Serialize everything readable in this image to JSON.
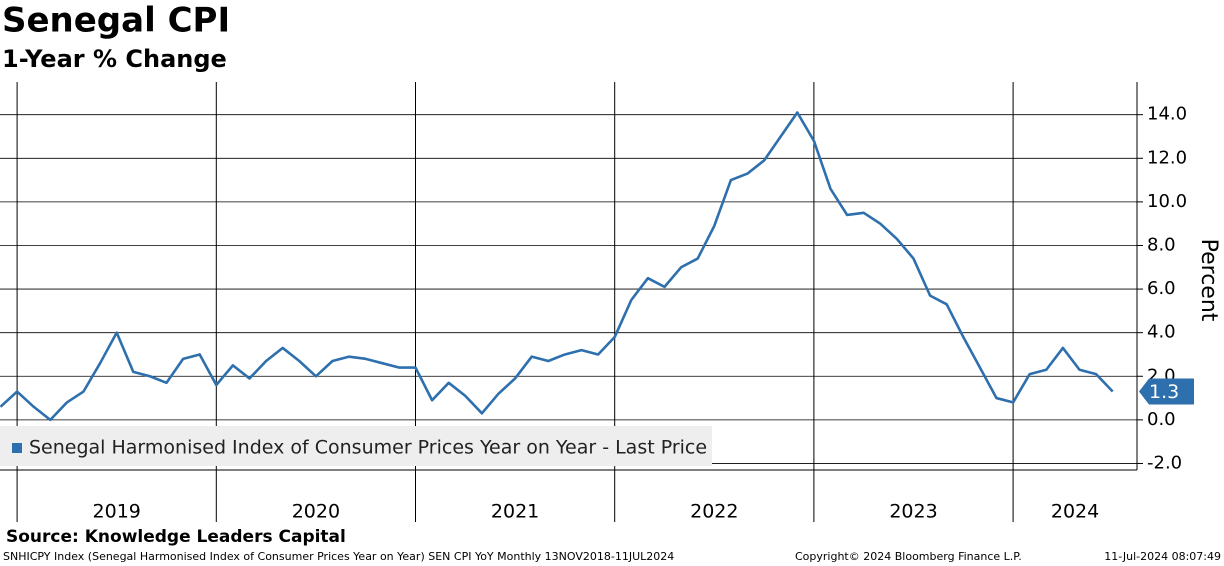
{
  "chart_data": {
    "type": "line",
    "title": "Senegal CPI",
    "subtitle": "1-Year % Change",
    "y_axis_label": "Percent",
    "source": "Source: Knowledge Leaders Capital",
    "footnote": "SNHICPY Index (Senegal Harmonised Index of Consumer Prices Year on Year) SEN CPI YoY  Monthly 13NOV2018-11JUL2024",
    "copyright": "Copyright© 2024 Bloomberg Finance L.P.",
    "timestamp": "11-Jul-2024 08:07:49",
    "year_labels": [
      "2019",
      "2020",
      "2021",
      "2022",
      "2023",
      "2024"
    ],
    "categories": [
      null,
      null,
      null,
      null,
      null,
      null,
      null,
      null,
      null,
      null,
      null,
      null,
      null,
      null,
      null,
      null,
      null,
      null,
      null,
      null,
      null,
      null,
      null,
      null,
      null,
      null,
      null,
      null,
      null,
      null,
      null,
      null,
      null,
      null,
      null,
      null,
      null,
      null,
      null,
      null,
      null,
      null,
      null,
      null,
      null,
      null,
      null,
      null,
      null,
      null,
      null,
      null,
      null,
      null,
      null,
      null,
      null,
      null,
      null,
      null,
      null,
      null,
      null,
      null,
      null,
      null,
      null,
      null
    ],
    "series": [
      {
        "name": "Senegal Harmonised Index of Consumer Prices Year on Year - Last Price",
        "color": "#2e6fad",
        "values": [
          0.6,
          1.3,
          0.6,
          0.0,
          0.8,
          1.3,
          2.6,
          4.0,
          2.2,
          2.0,
          1.7,
          2.8,
          3.0,
          1.6,
          2.5,
          1.9,
          2.7,
          3.3,
          2.7,
          2.0,
          2.7,
          2.9,
          2.8,
          2.6,
          2.4,
          2.4,
          0.9,
          1.7,
          1.1,
          0.3,
          1.2,
          1.9,
          2.9,
          2.7,
          3.0,
          3.2,
          3.0,
          3.8,
          5.5,
          6.5,
          6.1,
          7.0,
          7.4,
          8.9,
          11.0,
          11.3,
          11.9,
          13.0,
          14.1,
          12.8,
          10.6,
          9.4,
          9.5,
          9.0,
          8.3,
          7.4,
          5.7,
          5.3,
          3.8,
          2.4,
          1.0,
          0.8,
          2.1,
          2.3,
          3.3,
          2.3,
          2.1,
          1.3
        ],
        "last_value_label": "1.3"
      }
    ],
    "ylim": [
      -2.3,
      15.5
    ],
    "yticks": [
      {
        "value": -2,
        "label": "-2.0"
      },
      {
        "value": 0,
        "label": "0.0"
      },
      {
        "value": 2,
        "label": "2.0"
      },
      {
        "value": 4,
        "label": "4.0"
      },
      {
        "value": 6,
        "label": "6.0"
      },
      {
        "value": 8,
        "label": "8.0"
      },
      {
        "value": 10,
        "label": "10.0"
      },
      {
        "value": 12,
        "label": "12.0"
      },
      {
        "value": 14,
        "label": "14.0"
      }
    ],
    "grid": true,
    "legend": "bottom-left"
  }
}
